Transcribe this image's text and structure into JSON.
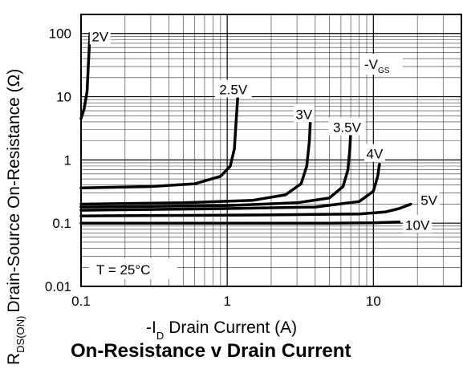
{
  "chart_data": {
    "type": "line",
    "title": "On-Resistance v Drain Current",
    "xlabel": {
      "prefix": "-I",
      "sub": "D",
      "text": "Drain Current (A)"
    },
    "ylabel": {
      "prefix": "R",
      "sub": "DS(ON)",
      "text": "Drain-Source On-Resistance (Ω)"
    },
    "x_scale": "log",
    "y_scale": "log",
    "xlim": [
      0.1,
      40
    ],
    "ylim": [
      0.01,
      200
    ],
    "x_ticks": [
      {
        "value": 0.1,
        "label": "0.1"
      },
      {
        "value": 1,
        "label": "1"
      },
      {
        "value": 10,
        "label": "10"
      }
    ],
    "y_ticks": [
      {
        "value": 0.01,
        "label": "0.01"
      },
      {
        "value": 0.1,
        "label": "0.1"
      },
      {
        "value": 1,
        "label": "1"
      },
      {
        "value": 10,
        "label": "10"
      },
      {
        "value": 100,
        "label": "100"
      }
    ],
    "grid": true,
    "legend_title": {
      "prefix": "-V",
      "sub": "GS"
    },
    "annotation": {
      "text": "T = 25°C"
    },
    "series": [
      {
        "name": "2V",
        "points": [
          [
            0.1,
            4.5
          ],
          [
            0.105,
            6.5
          ],
          [
            0.11,
            12
          ],
          [
            0.112,
            30
          ],
          [
            0.115,
            100
          ]
        ]
      },
      {
        "name": "2.5V",
        "points": [
          [
            0.1,
            0.36
          ],
          [
            0.3,
            0.38
          ],
          [
            0.6,
            0.42
          ],
          [
            0.9,
            0.55
          ],
          [
            1.05,
            0.8
          ],
          [
            1.12,
            1.5
          ],
          [
            1.15,
            4
          ],
          [
            1.18,
            10
          ]
        ]
      },
      {
        "name": "3V",
        "points": [
          [
            0.1,
            0.2
          ],
          [
            0.5,
            0.21
          ],
          [
            1.5,
            0.23
          ],
          [
            2.5,
            0.28
          ],
          [
            3.2,
            0.42
          ],
          [
            3.5,
            0.8
          ],
          [
            3.65,
            2
          ],
          [
            3.7,
            4
          ]
        ]
      },
      {
        "name": "3.5V",
        "points": [
          [
            0.1,
            0.18
          ],
          [
            1,
            0.19
          ],
          [
            3,
            0.21
          ],
          [
            5,
            0.25
          ],
          [
            6.2,
            0.38
          ],
          [
            6.7,
            0.7
          ],
          [
            6.9,
            1.5
          ],
          [
            7,
            2.8
          ]
        ]
      },
      {
        "name": "4V",
        "points": [
          [
            0.1,
            0.16
          ],
          [
            1,
            0.17
          ],
          [
            4,
            0.18
          ],
          [
            8,
            0.22
          ],
          [
            10,
            0.32
          ],
          [
            10.7,
            0.55
          ],
          [
            11,
            0.85
          ]
        ]
      },
      {
        "name": "5V",
        "points": [
          [
            0.1,
            0.13
          ],
          [
            2,
            0.135
          ],
          [
            8,
            0.14
          ],
          [
            12,
            0.15
          ],
          [
            15,
            0.17
          ],
          [
            18,
            0.2
          ]
        ]
      },
      {
        "name": "10V",
        "points": [
          [
            0.1,
            0.1
          ],
          [
            1,
            0.1
          ],
          [
            5,
            0.1
          ],
          [
            10,
            0.101
          ],
          [
            15,
            0.104
          ]
        ]
      }
    ],
    "series_labels": [
      {
        "text": "2V",
        "at": [
          0.135,
          90
        ]
      },
      {
        "text": "2.5V",
        "at": [
          1.1,
          13
        ]
      },
      {
        "text": "3V",
        "at": [
          3.35,
          5.3
        ]
      },
      {
        "text": "3.5V",
        "at": [
          6.6,
          3.3
        ]
      },
      {
        "text": "4V",
        "at": [
          10.2,
          1.25
        ]
      },
      {
        "text": "5V",
        "at": [
          24,
          0.23
        ]
      },
      {
        "text": "10V",
        "at": [
          20,
          0.094
        ]
      }
    ]
  }
}
